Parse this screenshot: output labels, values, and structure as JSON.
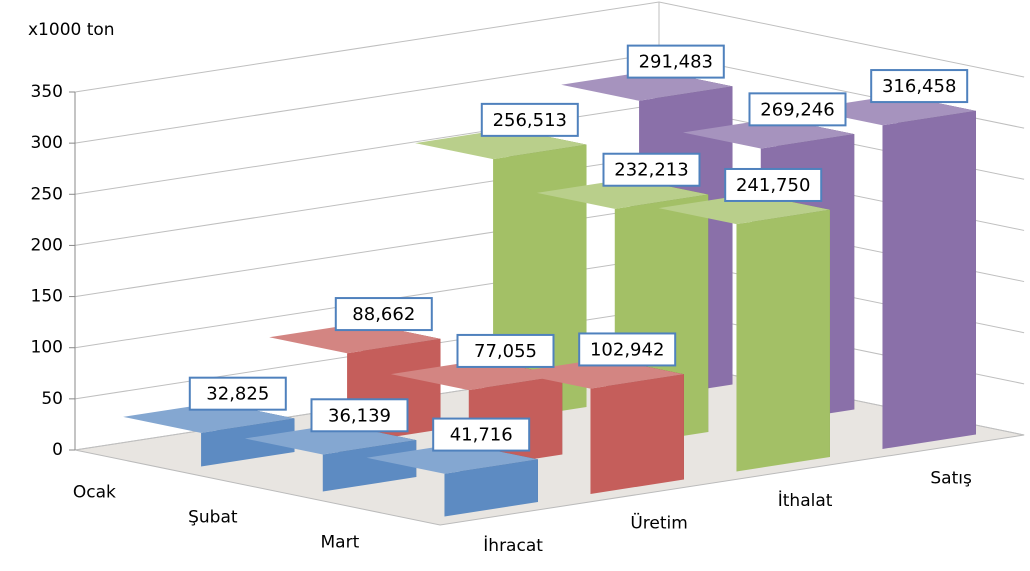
{
  "chart_data": {
    "type": "bar3d",
    "axis_title": "x1000 ton",
    "categories": [
      "Ocak",
      "Şubat",
      "Mart"
    ],
    "series": [
      {
        "name": "İhracat",
        "color": "#4f81bd",
        "values": [
          32.825,
          36.139,
          41.716
        ],
        "value_labels": [
          "32,825",
          "36,139",
          "41,716"
        ]
      },
      {
        "name": "Üretim",
        "color": "#c0504d",
        "values": [
          88.662,
          77.055,
          102.942
        ],
        "value_labels": [
          "88,662",
          "77,055",
          "102,942"
        ]
      },
      {
        "name": "İthalat",
        "color": "#9bbb59",
        "values": [
          256.513,
          232.213,
          241.75
        ],
        "value_labels": [
          "256,513",
          "232,213",
          "241,750"
        ]
      },
      {
        "name": "Satış",
        "color": "#8064a2",
        "values": [
          291.483,
          269.246,
          316.458
        ],
        "value_labels": [
          "291,483",
          "269,246",
          "316,458"
        ]
      }
    ],
    "ylim": [
      0,
      350
    ],
    "yticks": [
      0,
      50,
      100,
      150,
      200,
      250,
      300,
      350
    ],
    "grid": true
  }
}
